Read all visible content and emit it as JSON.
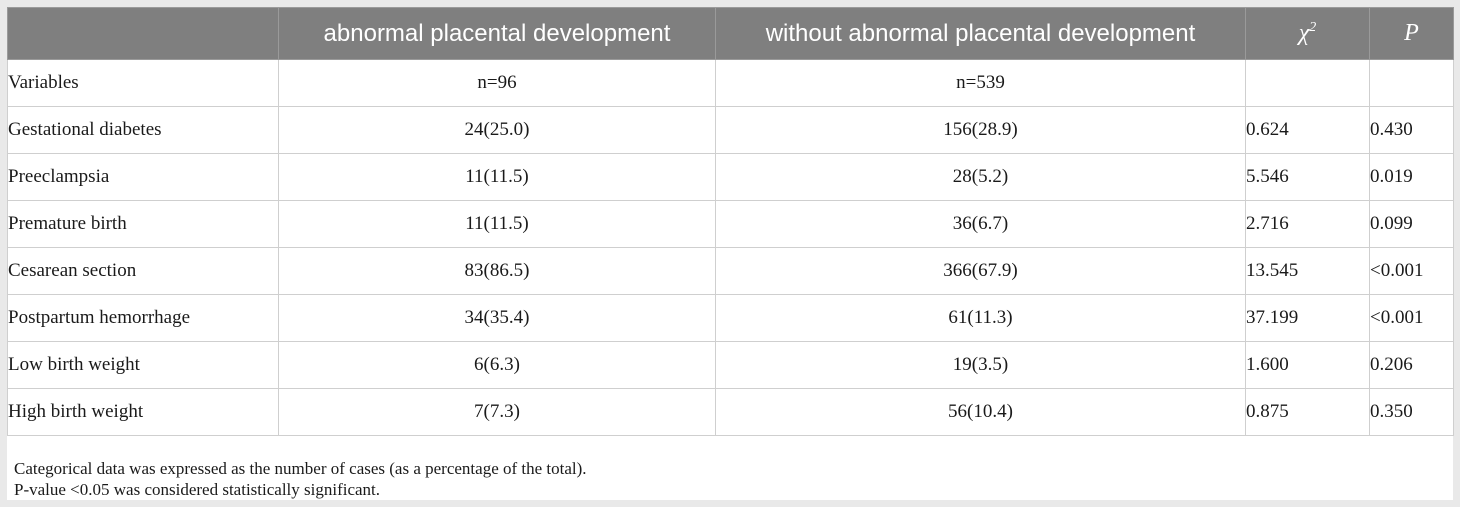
{
  "table": {
    "headers": [
      "",
      "abnormal placental development",
      "without abnormal placental development",
      "χ",
      "P"
    ],
    "chi_superscript": "2",
    "rows": [
      [
        "Variables",
        "n=96",
        "n=539",
        "",
        ""
      ],
      [
        "Gestational diabetes",
        "24(25.0)",
        "156(28.9)",
        "0.624",
        "0.430"
      ],
      [
        "Preeclampsia",
        "11(11.5)",
        "28(5.2)",
        "5.546",
        "0.019"
      ],
      [
        "Premature birth",
        "11(11.5)",
        "36(6.7)",
        "2.716",
        "0.099"
      ],
      [
        "Cesarean section",
        "83(86.5)",
        "366(67.9)",
        "13.545",
        "<0.001"
      ],
      [
        "Postpartum hemorrhage",
        "34(35.4)",
        "61(11.3)",
        "37.199",
        "<0.001"
      ],
      [
        "Low birth weight",
        "6(6.3)",
        "19(3.5)",
        "1.600",
        "0.206"
      ],
      [
        "High birth weight",
        "7(7.3)",
        "56(10.4)",
        "0.875",
        "0.350"
      ]
    ]
  },
  "notes": [
    "Categorical data was expressed as the number of cases (as a percentage of the total).",
    "P-value <0.05 was considered statistically significant."
  ]
}
